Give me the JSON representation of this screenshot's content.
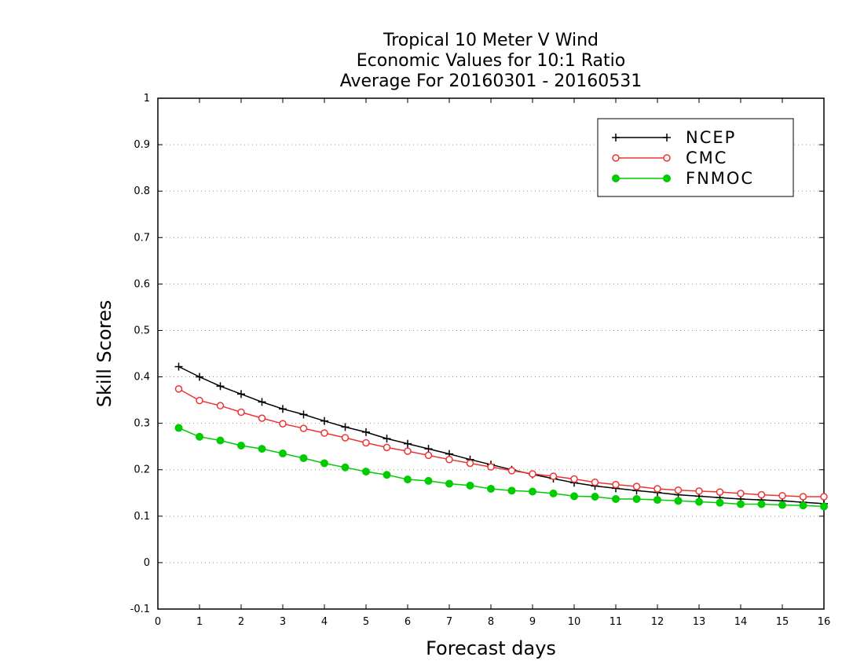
{
  "chart_data": {
    "type": "line",
    "title": [
      "Tropical 10 Meter V Wind",
      "Economic Values for 10:1 Ratio",
      "Average For 20160301 - 20160531"
    ],
    "xlabel": "Forecast days",
    "ylabel": "Skill Scores",
    "xlim": [
      0,
      16
    ],
    "ylim": [
      -0.1,
      1
    ],
    "xticks": [
      0,
      1,
      2,
      3,
      4,
      5,
      6,
      7,
      8,
      9,
      10,
      11,
      12,
      13,
      14,
      15,
      16
    ],
    "yticks": [
      -0.1,
      0,
      0.1,
      0.2,
      0.3,
      0.4,
      0.5,
      0.6,
      0.7,
      0.8,
      0.9,
      1
    ],
    "grid": "horizontal dotted",
    "legend_position": "top-right",
    "x": [
      0.5,
      1,
      1.5,
      2,
      2.5,
      3,
      3.5,
      4,
      4.5,
      5,
      5.5,
      6,
      6.5,
      7,
      7.5,
      8,
      8.5,
      9,
      9.5,
      10,
      10.5,
      11,
      11.5,
      12,
      12.5,
      13,
      13.5,
      14,
      14.5,
      15,
      15.5,
      16
    ],
    "series": [
      {
        "name": "NCEP",
        "color": "#000000",
        "marker": "plus",
        "values": [
          0.422,
          0.4,
          0.38,
          0.363,
          0.346,
          0.331,
          0.319,
          0.305,
          0.292,
          0.281,
          0.267,
          0.256,
          0.245,
          0.234,
          0.222,
          0.211,
          0.2,
          0.19,
          0.181,
          0.172,
          0.165,
          0.16,
          0.155,
          0.151,
          0.146,
          0.143,
          0.14,
          0.137,
          0.135,
          0.133,
          0.13,
          0.127
        ]
      },
      {
        "name": "CMC",
        "color": "#ee3333",
        "marker": "open-circle",
        "values": [
          0.374,
          0.349,
          0.338,
          0.324,
          0.311,
          0.299,
          0.289,
          0.279,
          0.269,
          0.258,
          0.248,
          0.24,
          0.231,
          0.222,
          0.214,
          0.206,
          0.198,
          0.191,
          0.186,
          0.18,
          0.173,
          0.168,
          0.164,
          0.159,
          0.156,
          0.154,
          0.152,
          0.149,
          0.146,
          0.144,
          0.142,
          0.142
        ]
      },
      {
        "name": "FNMOC",
        "color": "#00cc00",
        "marker": "filled-circle",
        "values": [
          0.29,
          0.271,
          0.263,
          0.252,
          0.245,
          0.235,
          0.225,
          0.214,
          0.205,
          0.196,
          0.189,
          0.179,
          0.176,
          0.17,
          0.166,
          0.159,
          0.155,
          0.153,
          0.149,
          0.143,
          0.142,
          0.137,
          0.137,
          0.135,
          0.133,
          0.131,
          0.129,
          0.126,
          0.126,
          0.124,
          0.123,
          0.121
        ]
      }
    ]
  }
}
